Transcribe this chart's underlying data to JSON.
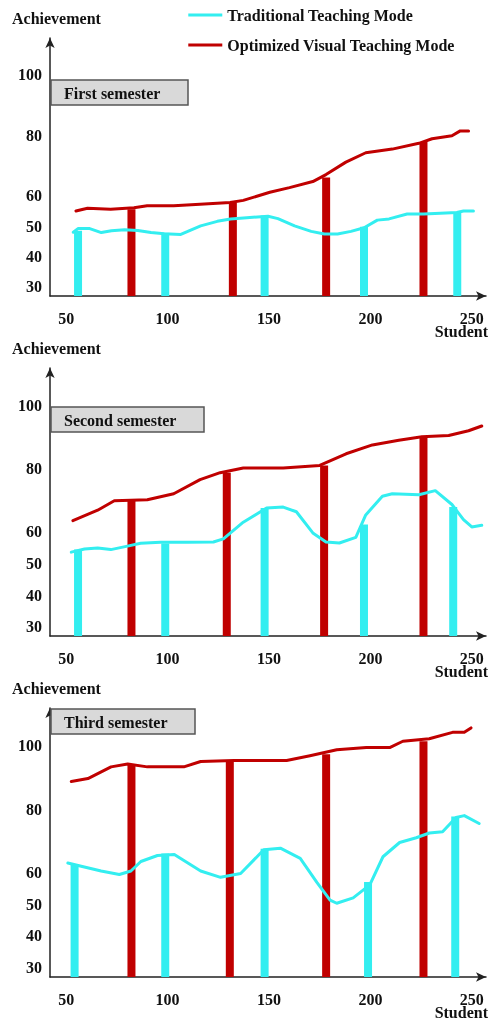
{
  "chart_data": [
    {
      "type": "line",
      "title": "First semester",
      "xlabel": "Student",
      "ylabel": "Achievement",
      "legend": "top right",
      "marker": "none",
      "xlim": [
        42,
        257
      ],
      "xticks": [
        50,
        100,
        150,
        200,
        250
      ],
      "ylim": [
        27,
        112
      ],
      "yticks": [
        30,
        40,
        50,
        60,
        80,
        100
      ],
      "series": [
        {
          "name": "Traditional Teaching Mode",
          "color": "#33eef0",
          "x": [
            53.5,
            55.8,
            61.6,
            67.3,
            72.3,
            78.8,
            85.3,
            91.8,
            98.4,
            106.5,
            116.3,
            124.5,
            131,
            139,
            149.5,
            154.4,
            162.6,
            170.8,
            177.3,
            183.8,
            190.4,
            196.9,
            203.4,
            209.2,
            218.1,
            226.3,
            234.5,
            242.6,
            245.9,
            250.8
          ],
          "values": [
            48.0,
            49.2,
            49.2,
            47.9,
            48.5,
            48.8,
            48.6,
            47.9,
            47.5,
            47.3,
            50.1,
            51.6,
            52.4,
            52.8,
            53.3,
            52.5,
            50.1,
            48.3,
            47.4,
            47.4,
            48.3,
            49.5,
            52.0,
            52.4,
            54.0,
            54.0,
            54.3,
            54.5,
            55.0,
            55.0
          ]
        },
        {
          "name": "Optimized Visual Teaching Mode",
          "color": "#c00000",
          "x": [
            54.8,
            60.5,
            71.9,
            83.4,
            89.9,
            103,
            116,
            130.8,
            137.3,
            150.4,
            160.1,
            171.6,
            178.1,
            187.9,
            197.7,
            210.8,
            223.9,
            230.4,
            240.2,
            244.3,
            248.4
          ],
          "values": [
            55.0,
            55.9,
            55.6,
            56.1,
            56.7,
            56.7,
            57.2,
            57.8,
            58.5,
            61.2,
            62.7,
            64.7,
            67.0,
            71.1,
            74.2,
            75.4,
            77.3,
            78.8,
            79.8,
            81.4,
            81.4
          ]
        },
        {
          "type": "bar",
          "color": "#33eef0",
          "x": [
            58,
            101,
            150,
            199,
            245
          ],
          "values": [
            48.5,
            47.8,
            53.5,
            49.8,
            54.7
          ]
        },
        {
          "type": "bar",
          "color": "#c00000",
          "x": [
            80,
            130,
            176,
            224
          ],
          "values": [
            55.6,
            57.6,
            66.0,
            77.7
          ]
        }
      ]
    },
    {
      "type": "line",
      "title": "Second semester",
      "xlabel": "Student",
      "ylabel": "Achievement",
      "marker": "none",
      "xlim": [
        42,
        257
      ],
      "xticks": [
        50,
        100,
        150,
        200,
        250
      ],
      "ylim": [
        27,
        112
      ],
      "yticks": [
        30,
        40,
        50,
        60,
        80,
        100
      ],
      "series": [
        {
          "color": "#33eef0",
          "x": [
            52.5,
            59,
            65.5,
            72,
            80.2,
            86.7,
            96.5,
            109.5,
            122.6,
            127.5,
            137.3,
            148.8,
            157,
            163.5,
            171.6,
            178.1,
            184.7,
            192.8,
            197.7,
            205.9,
            210.8,
            223.9,
            232,
            240.2,
            245.9,
            250,
            254.9
          ],
          "values": [
            53.6,
            54.6,
            54.9,
            54.4,
            55.5,
            56.4,
            56.7,
            56.7,
            56.8,
            57.8,
            63.1,
            67.6,
            67.9,
            66.4,
            59.7,
            56.8,
            56.5,
            58.3,
            65.4,
            71.3,
            72.1,
            71.8,
            73.1,
            68.7,
            63.9,
            61.6,
            62.1
          ]
        },
        {
          "color": "#c00000",
          "x": [
            53.3,
            65.5,
            73.7,
            90,
            103,
            116,
            125.9,
            137.3,
            157,
            175,
            188,
            201,
            214,
            225.4,
            238.6,
            248.4,
            254.9
          ],
          "values": [
            63.6,
            66.9,
            69.9,
            70.2,
            72.1,
            76.6,
            78.8,
            80.3,
            80.3,
            81.1,
            84.8,
            87.6,
            89.1,
            90.2,
            90.6,
            92.1,
            93.6
          ]
        },
        {
          "type": "bar",
          "color": "#33eef0",
          "x": [
            58,
            101,
            150,
            199,
            243
          ],
          "values": [
            54.4,
            56.3,
            67.6,
            62.4,
            67.9
          ]
        },
        {
          "type": "bar",
          "color": "#c00000",
          "x": [
            80,
            127,
            175,
            224
          ],
          "values": [
            70.2,
            78.8,
            81.1,
            90.2
          ]
        }
      ]
    },
    {
      "type": "line",
      "title": "Third semester",
      "xlabel": "Student",
      "ylabel": "Achievement",
      "marker": "none",
      "xlim": [
        42,
        257
      ],
      "xticks": [
        50,
        100,
        150,
        200,
        250
      ],
      "ylim": [
        27,
        112
      ],
      "yticks": [
        30,
        40,
        50,
        60,
        80,
        100
      ],
      "series": [
        {
          "color": "#33eef0",
          "x": [
            50.8,
            57.4,
            67.2,
            76.2,
            81.9,
            86.8,
            95,
            103.3,
            116.3,
            126.1,
            136,
            147.4,
            155.6,
            165.4,
            173.6,
            180.1,
            183.4,
            191.5,
            199.7,
            206.2,
            214.4,
            222.6,
            229.1,
            235.6,
            242.2,
            246.3,
            253.6
          ],
          "values": [
            63.0,
            62.0,
            60.5,
            59.4,
            60.5,
            63.5,
            65.4,
            65.7,
            60.5,
            58.5,
            59.7,
            67.2,
            67.7,
            64.5,
            56.9,
            51.3,
            50.3,
            52.0,
            56.1,
            65.0,
            69.5,
            71.0,
            72.5,
            72.9,
            77.4,
            78.0,
            75.5
          ]
        },
        {
          "color": "#c00000",
          "x": [
            52.5,
            60.7,
            72.1,
            80.3,
            90,
            108,
            116.3,
            132.6,
            158.7,
            170.2,
            183.4,
            198,
            209.5,
            216,
            229,
            240.5,
            246.3,
            249.6
          ],
          "values": [
            88.8,
            89.7,
            93.4,
            94.3,
            93.4,
            93.4,
            95.1,
            95.4,
            95.4,
            96.9,
            98.8,
            99.5,
            99.5,
            101.5,
            102.3,
            104.3,
            104.3,
            105.7
          ]
        },
        {
          "type": "bar",
          "color": "#33eef0",
          "x": [
            56.3,
            101,
            150,
            201,
            244
          ],
          "values": [
            62.7,
            66.0,
            67.5,
            57.0,
            77.7
          ]
        },
        {
          "type": "bar",
          "color": "#c00000",
          "x": [
            80,
            128.5,
            176,
            224
          ],
          "values": [
            94.3,
            95.4,
            97.4,
            101.5
          ]
        }
      ]
    }
  ]
}
